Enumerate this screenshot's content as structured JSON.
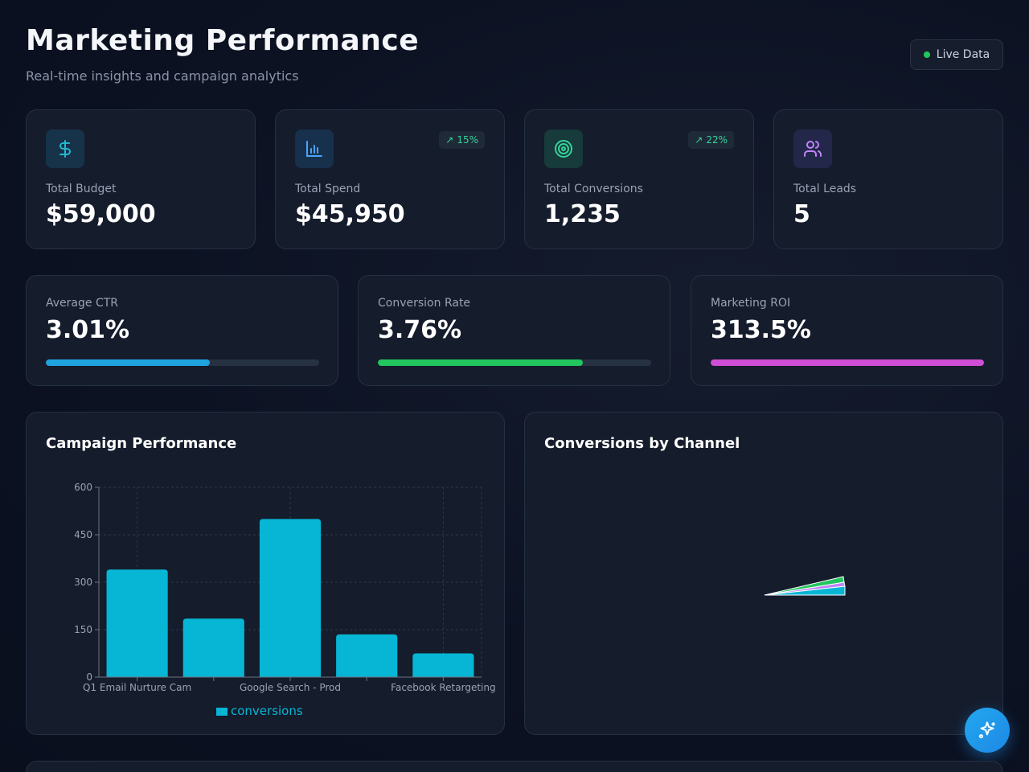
{
  "header": {
    "title": "Marketing Performance",
    "subtitle": "Real-time insights and campaign analytics",
    "live_label": "Live Data"
  },
  "stats": [
    {
      "label": "Total Budget",
      "value": "$59,000",
      "icon": "dollar-icon",
      "color": "#22b8cf"
    },
    {
      "label": "Total Spend",
      "value": "$45,950",
      "icon": "bar-chart-icon",
      "trend": "15%",
      "color": "#4aa3ff"
    },
    {
      "label": "Total Conversions",
      "value": "1,235",
      "icon": "target-icon",
      "trend": "22%",
      "color": "#34d399"
    },
    {
      "label": "Total Leads",
      "value": "5",
      "icon": "users-icon",
      "color": "#c084fc"
    }
  ],
  "metrics": [
    {
      "label": "Average CTR",
      "value": "3.01%",
      "progress": 0.6,
      "color": "#1fa4e0"
    },
    {
      "label": "Conversion Rate",
      "value": "3.76%",
      "progress": 0.75,
      "color": "#22c55e"
    },
    {
      "label": "Marketing ROI",
      "value": "313.5%",
      "progress": 1.0,
      "color": "#d04ed6"
    }
  ],
  "campaign_panel": {
    "title": "Campaign Performance"
  },
  "channel_panel": {
    "title": "Conversions by Channel"
  },
  "chart_data": {
    "type": "bar",
    "categories": [
      "Q1 Email Nurture Cam",
      "",
      "Google Search - Prod",
      "",
      "Facebook Retargeting"
    ],
    "series": [
      {
        "name": "conversions",
        "values": [
          340,
          185,
          500,
          135,
          75
        ],
        "color": "#06b6d4"
      }
    ],
    "yticks": [
      0,
      150,
      300,
      450,
      600
    ],
    "ylim": [
      0,
      600
    ],
    "grid": true,
    "legend": "bottom"
  },
  "fab": {
    "icon": "sparkles-icon"
  }
}
